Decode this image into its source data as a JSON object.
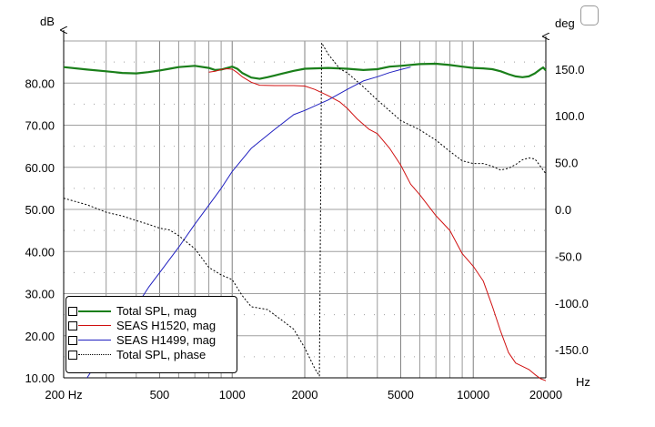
{
  "chart_data": {
    "type": "line",
    "left_unit": "dB",
    "right_unit": "deg",
    "x_unit": "Hz",
    "x_scale": "log",
    "xlim": [
      200,
      20000
    ],
    "ylim": [
      10,
      90
    ],
    "y2lim": [
      -180,
      180
    ],
    "grid": true,
    "x_tick_labels": [
      {
        "v": 200,
        "t": "200 Hz"
      },
      {
        "v": 500,
        "t": "500"
      },
      {
        "v": 1000,
        "t": "1000"
      },
      {
        "v": 2000,
        "t": "2000"
      },
      {
        "v": 5000,
        "t": "5000"
      },
      {
        "v": 10000,
        "t": "10000"
      },
      {
        "v": 20000,
        "t": "20000"
      }
    ],
    "y_tick_labels": [
      {
        "v": 80,
        "t": "80.00"
      },
      {
        "v": 70,
        "t": "70.00"
      },
      {
        "v": 60,
        "t": "60.00"
      },
      {
        "v": 50,
        "t": "50.00"
      },
      {
        "v": 40,
        "t": "40.00"
      },
      {
        "v": 30,
        "t": "30.00"
      },
      {
        "v": 20,
        "t": "20.00"
      },
      {
        "v": 10,
        "t": "10.00"
      }
    ],
    "y2_tick_labels": [
      {
        "v": 150,
        "t": "150.0"
      },
      {
        "v": 100,
        "t": "100.0"
      },
      {
        "v": 50,
        "t": "50.0"
      },
      {
        "v": 0,
        "t": "0.0"
      },
      {
        "v": -50,
        "t": "-50.0"
      },
      {
        "v": -100,
        "t": "-100.0"
      },
      {
        "v": -150,
        "t": "-150.0"
      }
    ],
    "series": [
      {
        "name": "Total SPL, mag",
        "color": "#1a7f1a",
        "style": "thick",
        "axis": "left",
        "points": [
          [
            200,
            83.8
          ],
          [
            250,
            83.2
          ],
          [
            300,
            82.8
          ],
          [
            350,
            82.4
          ],
          [
            400,
            82.3
          ],
          [
            450,
            82.6
          ],
          [
            500,
            83.0
          ],
          [
            550,
            83.4
          ],
          [
            600,
            83.8
          ],
          [
            700,
            84.1
          ],
          [
            800,
            83.6
          ],
          [
            850,
            83.1
          ],
          [
            900,
            83.2
          ],
          [
            1000,
            83.9
          ],
          [
            1050,
            83.4
          ],
          [
            1100,
            82.4
          ],
          [
            1200,
            81.3
          ],
          [
            1300,
            81.0
          ],
          [
            1400,
            81.4
          ],
          [
            1500,
            81.8
          ],
          [
            1600,
            82.2
          ],
          [
            1800,
            82.9
          ],
          [
            2000,
            83.4
          ],
          [
            2500,
            83.6
          ],
          [
            3000,
            83.4
          ],
          [
            3500,
            83.1
          ],
          [
            4000,
            83.3
          ],
          [
            4500,
            83.9
          ],
          [
            5000,
            84.1
          ],
          [
            6000,
            84.5
          ],
          [
            7000,
            84.6
          ],
          [
            8000,
            84.3
          ],
          [
            9000,
            83.9
          ],
          [
            10000,
            83.6
          ],
          [
            11000,
            83.5
          ],
          [
            12000,
            83.3
          ],
          [
            13000,
            82.8
          ],
          [
            14000,
            82.1
          ],
          [
            15000,
            81.6
          ],
          [
            16000,
            81.4
          ],
          [
            17000,
            81.6
          ],
          [
            18000,
            82.3
          ],
          [
            19000,
            83.3
          ],
          [
            19500,
            83.7
          ],
          [
            20000,
            83.0
          ]
        ]
      },
      {
        "name": "SEAS H1520, mag",
        "color": "#d01010",
        "style": "thin",
        "axis": "left",
        "points": [
          [
            800,
            82.6
          ],
          [
            850,
            82.8
          ],
          [
            900,
            83.2
          ],
          [
            950,
            83.4
          ],
          [
            1000,
            83.3
          ],
          [
            1050,
            82.5
          ],
          [
            1100,
            81.5
          ],
          [
            1200,
            80.2
          ],
          [
            1300,
            79.5
          ],
          [
            1500,
            79.4
          ],
          [
            1800,
            79.4
          ],
          [
            2000,
            79.3
          ],
          [
            2200,
            78.5
          ],
          [
            2500,
            77.0
          ],
          [
            2800,
            75.5
          ],
          [
            3000,
            74.0
          ],
          [
            3300,
            71.5
          ],
          [
            3700,
            69.0
          ],
          [
            4000,
            68.0
          ],
          [
            4500,
            64.5
          ],
          [
            5000,
            60.5
          ],
          [
            5500,
            56.0
          ],
          [
            6000,
            53.5
          ],
          [
            7000,
            48.5
          ],
          [
            8000,
            45.0
          ],
          [
            9000,
            39.5
          ],
          [
            10000,
            36.5
          ],
          [
            11000,
            33.0
          ],
          [
            12000,
            27.0
          ],
          [
            13000,
            21.0
          ],
          [
            14000,
            16.0
          ],
          [
            15000,
            13.5
          ],
          [
            17000,
            12.0
          ],
          [
            18000,
            10.8
          ],
          [
            19000,
            9.8
          ],
          [
            20000,
            9.3
          ]
        ]
      },
      {
        "name": "SEAS H1499, mag",
        "color": "#2020c0",
        "style": "thin",
        "axis": "left",
        "points": [
          [
            250,
            10.0
          ],
          [
            300,
            17.0
          ],
          [
            350,
            22.0
          ],
          [
            400,
            27.0
          ],
          [
            450,
            31.5
          ],
          [
            500,
            35.0
          ],
          [
            600,
            41.0
          ],
          [
            700,
            46.5
          ],
          [
            800,
            51.0
          ],
          [
            900,
            55.0
          ],
          [
            1000,
            59.0
          ],
          [
            1200,
            64.5
          ],
          [
            1500,
            69.0
          ],
          [
            1800,
            72.5
          ],
          [
            2000,
            73.5
          ],
          [
            2500,
            76.0
          ],
          [
            3000,
            78.5
          ],
          [
            3500,
            80.5
          ],
          [
            4000,
            81.5
          ],
          [
            4500,
            82.5
          ],
          [
            5000,
            83.2
          ],
          [
            5500,
            83.8
          ]
        ]
      },
      {
        "name": "Total SPL, phase",
        "color": "#000000",
        "style": "dotted",
        "axis": "right",
        "points": [
          [
            200,
            12.0
          ],
          [
            250,
            5.0
          ],
          [
            300,
            -3.0
          ],
          [
            350,
            -7.0
          ],
          [
            400,
            -12.0
          ],
          [
            450,
            -16.0
          ],
          [
            500,
            -20.0
          ],
          [
            550,
            -22.0
          ],
          [
            600,
            -28.0
          ],
          [
            700,
            -42.0
          ],
          [
            800,
            -62.0
          ],
          [
            900,
            -70.0
          ],
          [
            1000,
            -75.0
          ],
          [
            1100,
            -92.0
          ],
          [
            1200,
            -104.0
          ],
          [
            1400,
            -107.0
          ],
          [
            1600,
            -118.0
          ],
          [
            1800,
            -128.0
          ],
          [
            2000,
            -148.0
          ],
          [
            2200,
            -170.0
          ],
          [
            2300,
            -178.0
          ],
          [
            2350,
            178.0
          ],
          [
            2500,
            166.0
          ],
          [
            2800,
            150.0
          ],
          [
            3000,
            146.0
          ],
          [
            3500,
            131.0
          ],
          [
            4000,
            117.0
          ],
          [
            5000,
            95.0
          ],
          [
            6000,
            85.0
          ],
          [
            7000,
            74.0
          ],
          [
            8000,
            62.0
          ],
          [
            9000,
            52.0
          ],
          [
            10000,
            49.0
          ],
          [
            11000,
            49.0
          ],
          [
            12000,
            46.0
          ],
          [
            13000,
            42.0
          ],
          [
            14000,
            44.0
          ],
          [
            15000,
            48.0
          ],
          [
            16000,
            53.0
          ],
          [
            17000,
            55.0
          ],
          [
            18000,
            54.0
          ],
          [
            19000,
            46.0
          ],
          [
            20000,
            38.0
          ]
        ]
      }
    ]
  }
}
